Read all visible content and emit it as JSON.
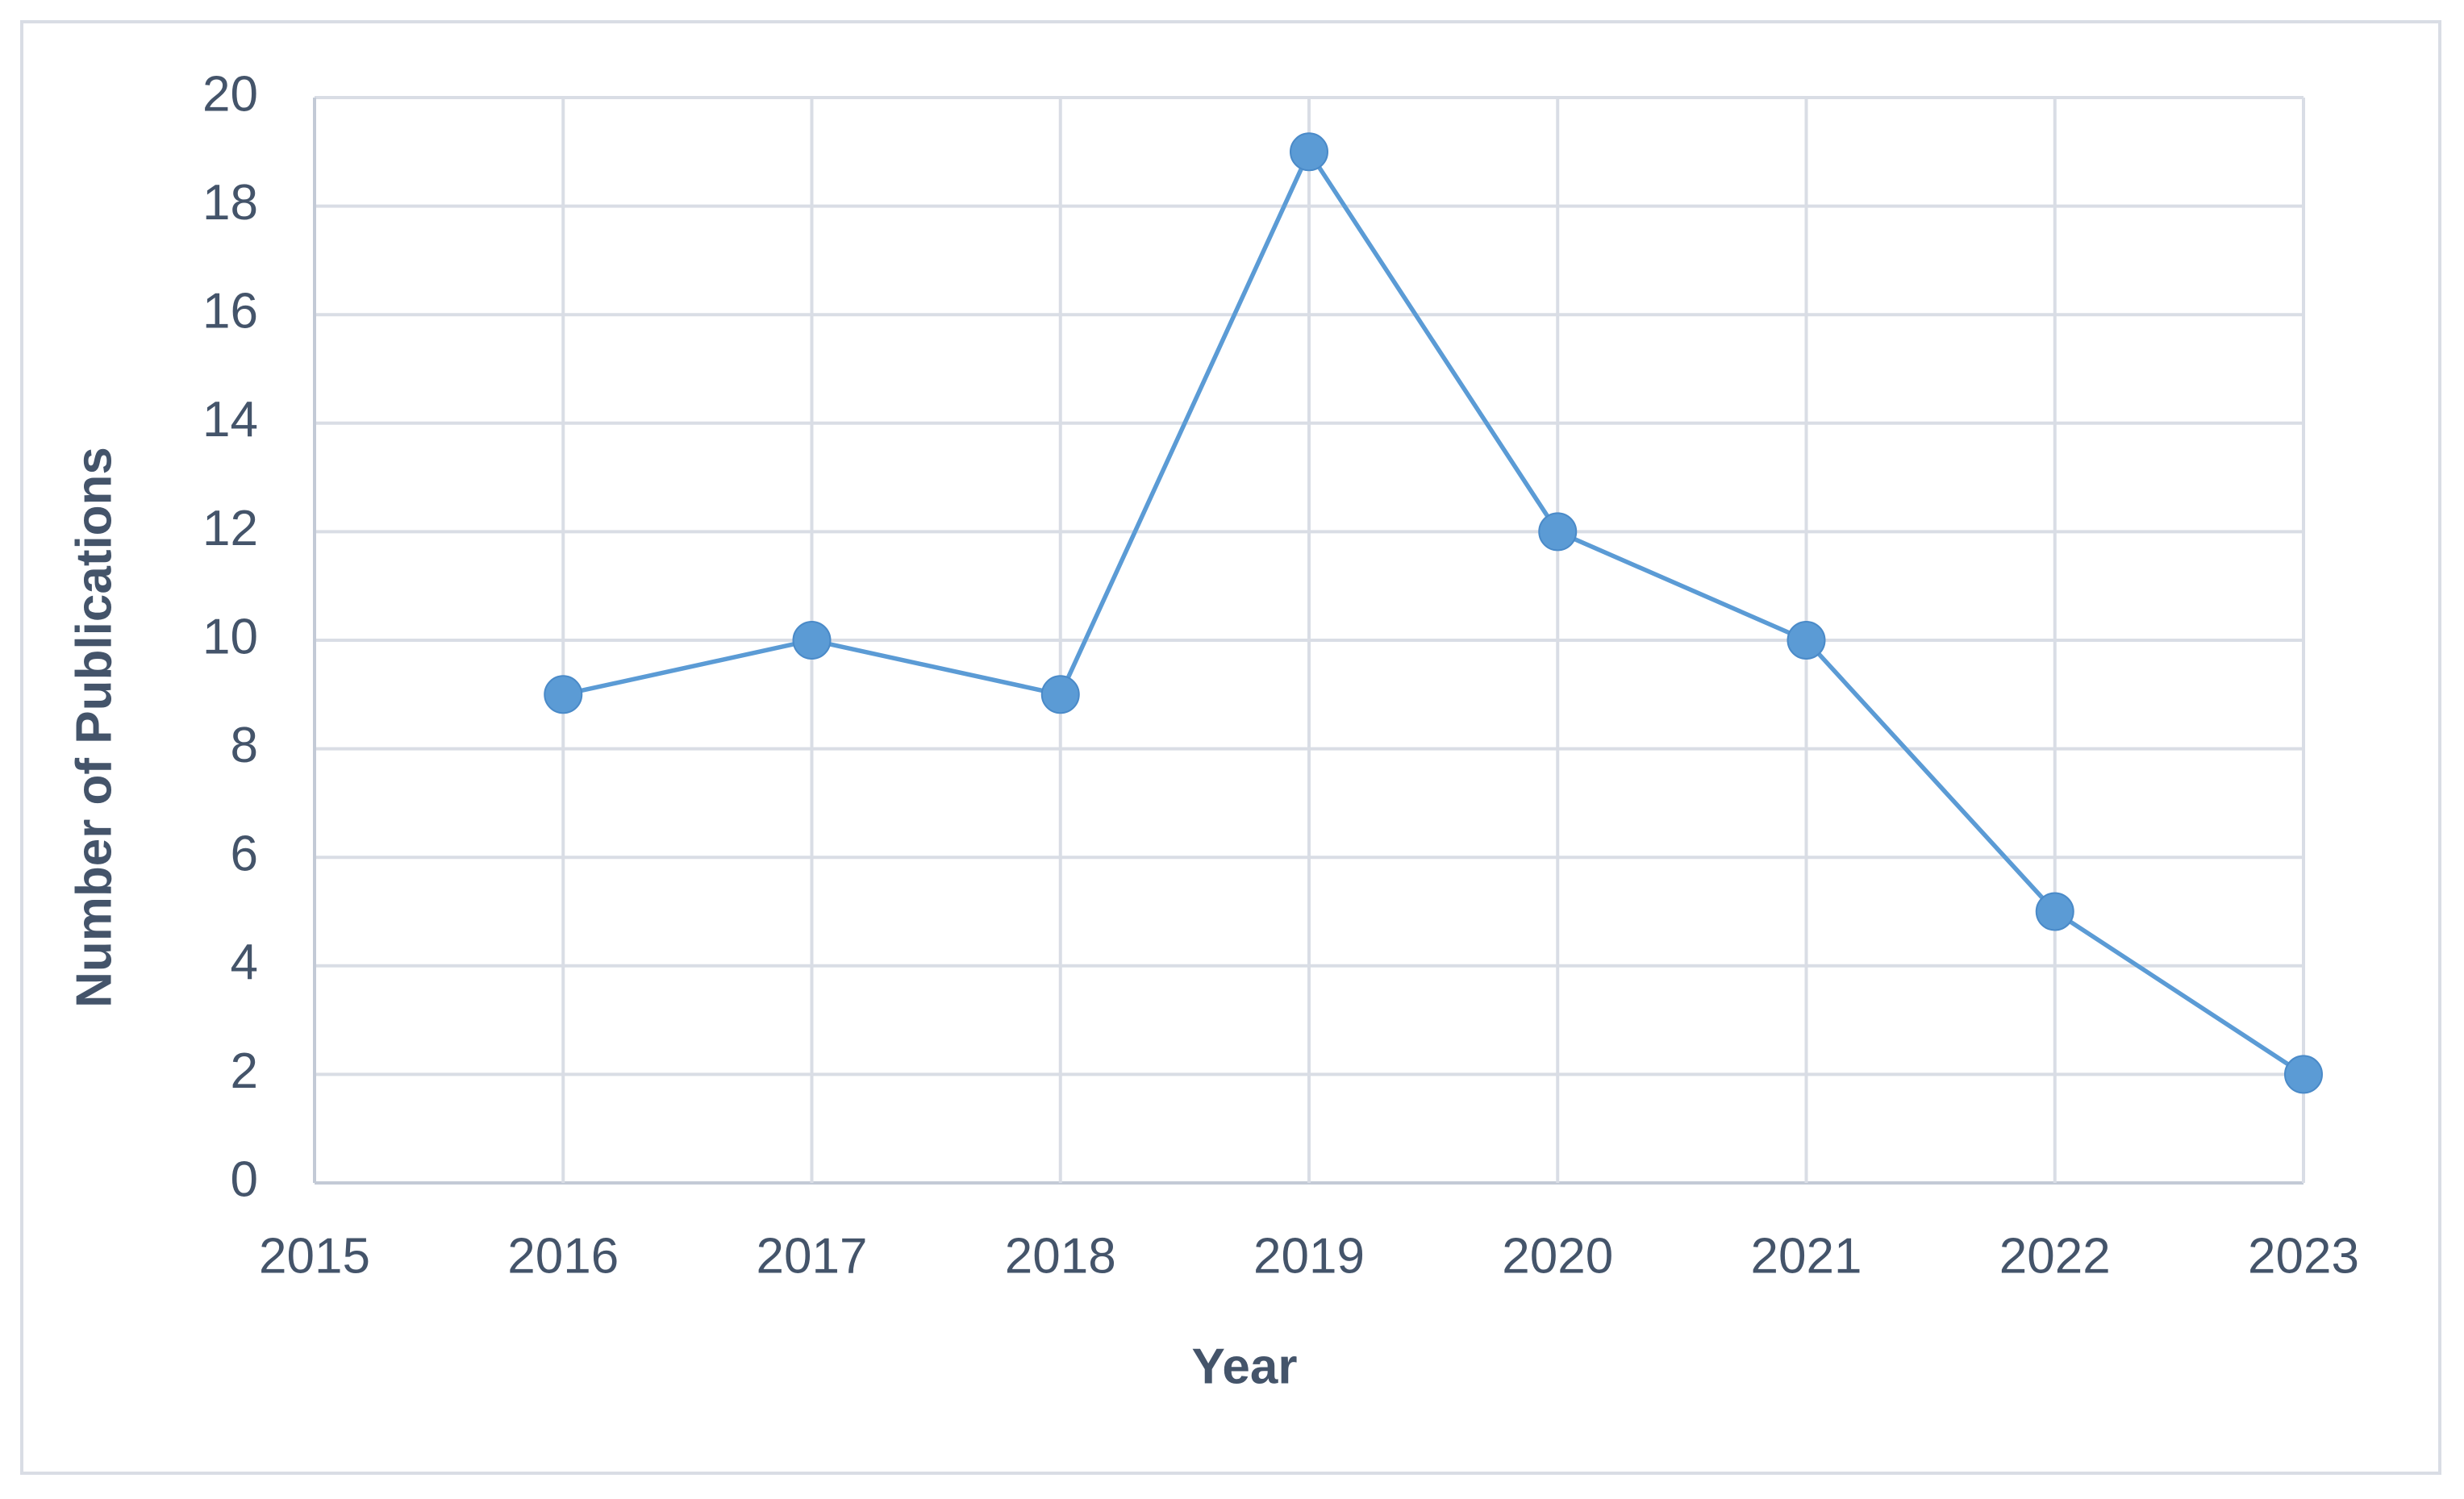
{
  "chart_data": {
    "type": "line",
    "x_label": "Year",
    "y_label": "Number of Publications",
    "x": [
      2016,
      2017,
      2018,
      2019,
      2020,
      2021,
      2022,
      2023
    ],
    "values": [
      9,
      10,
      9,
      19,
      12,
      10,
      5,
      2
    ],
    "color": "#5b9bd5",
    "xlim": [
      2015,
      2023
    ],
    "xticks": [
      2015,
      2016,
      2017,
      2018,
      2019,
      2020,
      2021,
      2022,
      2023
    ],
    "ylim": [
      0,
      20
    ],
    "yticks": [
      0,
      2,
      4,
      6,
      8,
      10,
      12,
      14,
      16,
      18,
      20
    ],
    "grid": true
  }
}
